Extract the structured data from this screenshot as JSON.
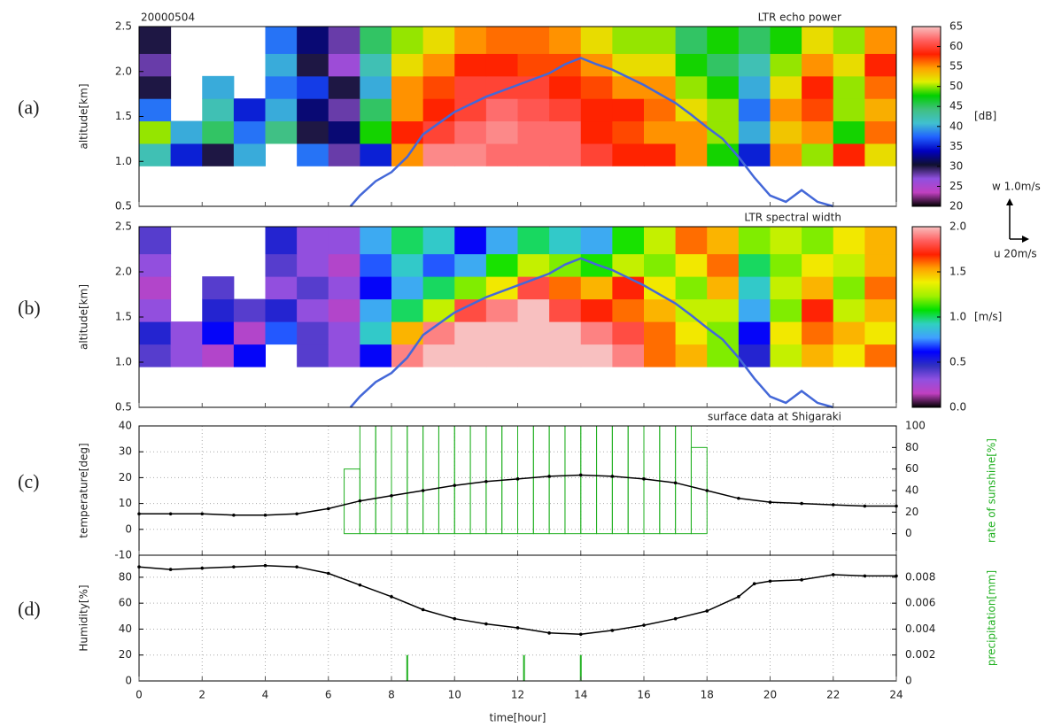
{
  "chart_data": [
    {
      "type": "heatmap",
      "panel_label": "(a)",
      "date_label": "20000504",
      "title": "LTR echo power",
      "ylabel": "altitude[km]",
      "colorbar_label": "[dB]",
      "vector_scale_labels": [
        "w 1.0m/s",
        "u 20m/s"
      ],
      "xlim": [
        0,
        24
      ],
      "ylim": [
        0.5,
        2.5
      ],
      "yticks": [
        0.5,
        {
          "value": 1,
          "label": "1.0"
        },
        1.5,
        {
          "value": 2,
          "label": "2.0"
        },
        2.5
      ],
      "x_edges": [
        0,
        1,
        2,
        3,
        4,
        5,
        6,
        7,
        8,
        9,
        10,
        11,
        12,
        13,
        14,
        15,
        16,
        17,
        18,
        19,
        20,
        21,
        22,
        23,
        24
      ],
      "y_edges": [
        0.95,
        1.2,
        1.45,
        1.7,
        1.95,
        2.2,
        2.5
      ],
      "z": [
        [
          42,
          35,
          30,
          40,
          null,
          38,
          28,
          35,
          55,
          63,
          63,
          62,
          62,
          62,
          60,
          58,
          58,
          55,
          48,
          35,
          55,
          50,
          58,
          52
        ],
        [
          50,
          40,
          45,
          38,
          44,
          30,
          32,
          48,
          58,
          60,
          62,
          63,
          62,
          62,
          58,
          57,
          55,
          55,
          50,
          40,
          53,
          55,
          48,
          56
        ],
        [
          38,
          null,
          42,
          35,
          40,
          32,
          28,
          45,
          55,
          58,
          60,
          62,
          61,
          60,
          58,
          58,
          56,
          52,
          50,
          38,
          55,
          57,
          50,
          54
        ],
        [
          30,
          null,
          40,
          null,
          38,
          36,
          30,
          40,
          55,
          57,
          60,
          60,
          60,
          58,
          57,
          55,
          55,
          50,
          48,
          40,
          52,
          58,
          50,
          56
        ],
        [
          28,
          null,
          null,
          null,
          40,
          30,
          26,
          42,
          52,
          55,
          58,
          58,
          57,
          57,
          55,
          52,
          52,
          48,
          45,
          42,
          50,
          55,
          52,
          58
        ],
        [
          30,
          null,
          null,
          null,
          38,
          32,
          28,
          45,
          50,
          52,
          55,
          56,
          56,
          55,
          52,
          50,
          50,
          45,
          48,
          45,
          48,
          52,
          50,
          55
        ]
      ],
      "zlim": [
        20,
        65
      ],
      "zticks": [
        20,
        25,
        30,
        35,
        40,
        45,
        50,
        55,
        60,
        65
      ],
      "colormap": [
        "#000000",
        "#c040c0",
        "#9050e0",
        "#101030",
        "#0000c0",
        "#2060ff",
        "#40c0d0",
        "#40c080",
        "#00d000",
        "#e0f000",
        "#ffa000",
        "#ff2000",
        "#ff6060",
        "#f8c0c0"
      ],
      "line": {
        "color": "#4468d8",
        "x": [
          6.7,
          7,
          7.5,
          8,
          8.5,
          9,
          10,
          11,
          12,
          13,
          13.5,
          14,
          14.5,
          15,
          16,
          17,
          17.5,
          18,
          18.5,
          19,
          19.5,
          20,
          20.5,
          21,
          21.5,
          22
        ],
        "values": [
          0.5,
          0.62,
          0.78,
          0.88,
          1.05,
          1.3,
          1.55,
          1.72,
          1.85,
          1.98,
          2.08,
          2.15,
          2.08,
          2.02,
          1.85,
          1.65,
          1.52,
          1.38,
          1.25,
          1.05,
          0.82,
          0.62,
          0.55,
          0.68,
          0.55,
          0.5
        ]
      }
    },
    {
      "type": "heatmap",
      "panel_label": "(b)",
      "title": "LTR spectral width",
      "ylabel": "altitude[km]",
      "colorbar_label": "[m/s]",
      "xlim": [
        0,
        24
      ],
      "ylim": [
        0.5,
        2.5
      ],
      "yticks": [
        0.5,
        {
          "value": 1,
          "label": "1.0"
        },
        1.5,
        {
          "value": 2,
          "label": "2.0"
        },
        2.5
      ],
      "x_edges": [
        0,
        1,
        2,
        3,
        4,
        5,
        6,
        7,
        8,
        9,
        10,
        11,
        12,
        13,
        14,
        15,
        16,
        17,
        18,
        19,
        20,
        21,
        22,
        23,
        24
      ],
      "y_edges": [
        0.95,
        1.2,
        1.45,
        1.7,
        1.95,
        2.2,
        2.5
      ],
      "z": [
        [
          0.4,
          0.3,
          0.2,
          0.6,
          null,
          0.4,
          0.3,
          0.6,
          1.9,
          2.0,
          2.0,
          2.0,
          2.0,
          2.0,
          2.0,
          1.9,
          1.6,
          1.5,
          1.2,
          0.5,
          1.3,
          1.5,
          1.4,
          1.6
        ],
        [
          0.5,
          0.3,
          0.6,
          0.2,
          0.7,
          0.4,
          0.3,
          0.9,
          1.5,
          1.9,
          2.0,
          2.0,
          2.0,
          2.0,
          1.9,
          1.8,
          1.6,
          1.4,
          1.2,
          0.6,
          1.4,
          1.6,
          1.5,
          1.4
        ],
        [
          0.3,
          null,
          0.5,
          0.4,
          0.5,
          0.3,
          0.2,
          0.8,
          1.0,
          1.3,
          1.8,
          1.9,
          2.0,
          1.8,
          1.7,
          1.6,
          1.5,
          1.3,
          1.3,
          0.8,
          1.2,
          1.7,
          1.3,
          1.5
        ],
        [
          0.2,
          null,
          0.4,
          null,
          0.3,
          0.4,
          0.3,
          0.6,
          0.8,
          1.0,
          1.2,
          1.4,
          1.8,
          1.6,
          1.5,
          1.7,
          1.4,
          1.2,
          1.5,
          0.9,
          1.3,
          1.5,
          1.2,
          1.6
        ],
        [
          0.3,
          null,
          null,
          null,
          0.4,
          0.3,
          0.2,
          0.7,
          0.9,
          0.7,
          0.8,
          1.1,
          1.3,
          1.2,
          1.1,
          1.3,
          1.2,
          1.4,
          1.6,
          1.0,
          1.2,
          1.4,
          1.3,
          1.5
        ],
        [
          0.4,
          null,
          null,
          null,
          0.5,
          0.3,
          0.3,
          0.8,
          1.0,
          0.9,
          0.6,
          0.8,
          1.0,
          0.9,
          0.8,
          1.1,
          1.3,
          1.6,
          1.5,
          1.2,
          1.3,
          1.2,
          1.4,
          1.5
        ]
      ],
      "zlim": [
        0,
        2
      ],
      "zticks": [
        {
          "value": 0,
          "label": "0.0"
        },
        0.5,
        {
          "value": 1,
          "label": "1.0"
        },
        1.5,
        {
          "value": 2,
          "label": "2.0"
        }
      ],
      "colormap": [
        "#000000",
        "#c040c0",
        "#9050e0",
        "#3030c0",
        "#0000ff",
        "#40a0ff",
        "#30d0c0",
        "#00e000",
        "#a0f000",
        "#f0f000",
        "#ffa000",
        "#ff2000",
        "#ff6060",
        "#f8c0c0"
      ],
      "line": {
        "color": "#4468d8",
        "x": [
          6.7,
          7,
          7.5,
          8,
          8.5,
          9,
          10,
          11,
          12,
          13,
          13.5,
          14,
          14.5,
          15,
          16,
          17,
          17.5,
          18,
          18.5,
          19,
          19.5,
          20,
          20.5,
          21,
          21.5,
          22
        ],
        "values": [
          0.5,
          0.62,
          0.78,
          0.88,
          1.05,
          1.3,
          1.55,
          1.72,
          1.85,
          1.98,
          2.08,
          2.15,
          2.08,
          2.02,
          1.85,
          1.65,
          1.52,
          1.38,
          1.25,
          1.05,
          0.82,
          0.62,
          0.55,
          0.68,
          0.55,
          0.5
        ]
      }
    },
    {
      "type": "line_bar",
      "panel_label": "(c)",
      "title": "surface data at Shigaraki",
      "ylabel": "temperature[deg]",
      "y2label": "rate of sunshine[%]",
      "y2label_color": "#20b020",
      "xlim": [
        0,
        24
      ],
      "ylim": [
        -10,
        40
      ],
      "yticks": [
        -10,
        0,
        10,
        20,
        30,
        40
      ],
      "y2lim": [
        -20,
        100
      ],
      "y2ticks": [
        0,
        20,
        40,
        60,
        80,
        100
      ],
      "grid": true,
      "series": [
        {
          "type": "bar",
          "axis": "y2",
          "color": "#20b020",
          "x": [
            6.5,
            7,
            7.5,
            8,
            8.5,
            9,
            9.5,
            10,
            10.5,
            11,
            11.5,
            12,
            12.5,
            13,
            13.5,
            14,
            14.5,
            15,
            15.5,
            16,
            16.5,
            17,
            17.5
          ],
          "values": [
            60,
            100,
            100,
            100,
            100,
            100,
            100,
            100,
            100,
            100,
            100,
            100,
            100,
            100,
            100,
            100,
            100,
            100,
            100,
            100,
            100,
            100,
            80
          ]
        },
        {
          "type": "line",
          "color": "#000000",
          "x": [
            0,
            1,
            2,
            3,
            4,
            5,
            6,
            7,
            8,
            9,
            10,
            11,
            12,
            13,
            14,
            15,
            16,
            17,
            18,
            19,
            20,
            21,
            22,
            23,
            24
          ],
          "values": [
            6,
            6,
            6,
            5.5,
            5.5,
            6,
            8,
            11,
            13,
            15,
            17,
            18.5,
            19.5,
            20.5,
            21,
            20.5,
            19.5,
            18,
            15,
            12,
            10.5,
            10,
            9.5,
            9,
            9
          ]
        }
      ]
    },
    {
      "type": "line_bar",
      "panel_label": "(d)",
      "ylabel": "Humidity[%]",
      "y2label": "precipitation[mm]",
      "y2label_color": "#20b020",
      "xlabel": "time[hour]",
      "xlim": [
        0,
        24
      ],
      "xticks": [
        0,
        2,
        4,
        6,
        8,
        10,
        12,
        14,
        16,
        18,
        20,
        22,
        24
      ],
      "ylim": [
        0,
        97
      ],
      "yticks": [
        0,
        20,
        40,
        60,
        80
      ],
      "y2lim": [
        0,
        0.0097
      ],
      "y2ticks": [
        0,
        0.002,
        0.004,
        0.006,
        0.008
      ],
      "grid": true,
      "series": [
        {
          "type": "line",
          "color": "#000000",
          "x": [
            0,
            1,
            2,
            3,
            4,
            5,
            6,
            7,
            8,
            9,
            10,
            11,
            12,
            13,
            14,
            15,
            16,
            17,
            18,
            19,
            19.5,
            20,
            21,
            22,
            23,
            24
          ],
          "values": [
            88,
            86,
            87,
            88,
            89,
            88,
            83,
            74,
            65,
            55,
            48,
            44,
            41,
            37,
            36,
            39,
            43,
            48,
            54,
            65,
            75,
            77,
            78,
            82,
            81,
            81
          ]
        },
        {
          "type": "stem",
          "axis": "y2",
          "color": "#20b020",
          "x": [
            8.5,
            12.2,
            14.0
          ],
          "values": [
            0.002,
            0.002,
            0.002
          ]
        }
      ]
    }
  ]
}
